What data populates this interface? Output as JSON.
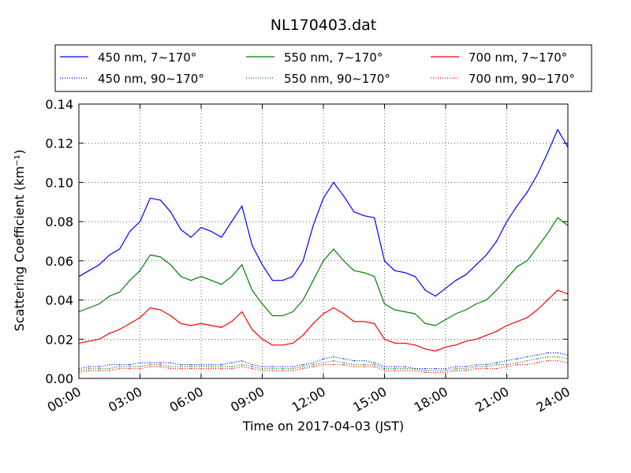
{
  "chart_data": {
    "type": "line",
    "title": "NL170403.dat",
    "xlabel": "Time on 2017-04-03 (JST)",
    "ylabel": "Scattering Coefficient (km⁻¹)",
    "x_unit": "hours",
    "xlim": [
      0,
      24
    ],
    "ylim": [
      0,
      0.14
    ],
    "x_ticks": [
      0,
      3,
      6,
      9,
      12,
      15,
      18,
      21,
      24
    ],
    "x_tick_labels": [
      "00:00",
      "03:00",
      "06:00",
      "09:00",
      "12:00",
      "15:00",
      "18:00",
      "21:00",
      "24:00"
    ],
    "y_ticks": [
      0,
      0.02,
      0.04,
      0.06,
      0.08,
      0.1,
      0.12,
      0.14
    ],
    "y_tick_labels": [
      "0.00",
      "0.02",
      "0.04",
      "0.06",
      "0.08",
      "0.10",
      "0.12",
      "0.14"
    ],
    "grid": true,
    "legend_position": "top",
    "x": [
      0,
      0.5,
      1,
      1.5,
      2,
      2.5,
      3,
      3.5,
      4,
      4.5,
      5,
      5.5,
      6,
      6.5,
      7,
      7.5,
      8,
      8.5,
      9,
      9.5,
      10,
      10.5,
      11,
      11.5,
      12,
      12.5,
      13,
      13.5,
      14,
      14.5,
      15,
      15.5,
      16,
      16.5,
      17,
      17.5,
      18,
      18.5,
      19,
      19.5,
      20,
      20.5,
      21,
      21.5,
      22,
      22.5,
      23,
      23.5,
      24
    ],
    "series": [
      {
        "name": "450 nm, 7∼170°",
        "color": "#0000ff",
        "style": "solid",
        "values": [
          0.052,
          0.055,
          0.058,
          0.063,
          0.066,
          0.075,
          0.08,
          0.092,
          0.091,
          0.085,
          0.076,
          0.072,
          0.077,
          0.075,
          0.072,
          0.08,
          0.088,
          0.068,
          0.058,
          0.05,
          0.05,
          0.052,
          0.06,
          0.078,
          0.092,
          0.1,
          0.093,
          0.085,
          0.083,
          0.082,
          0.06,
          0.055,
          0.054,
          0.052,
          0.045,
          0.042,
          0.046,
          0.05,
          0.053,
          0.058,
          0.063,
          0.07,
          0.08,
          0.088,
          0.095,
          0.104,
          0.115,
          0.127,
          0.118
        ]
      },
      {
        "name": "550 nm, 7∼170°",
        "color": "#008000",
        "style": "solid",
        "values": [
          0.034,
          0.036,
          0.038,
          0.042,
          0.044,
          0.05,
          0.055,
          0.063,
          0.062,
          0.058,
          0.052,
          0.05,
          0.052,
          0.05,
          0.048,
          0.052,
          0.058,
          0.045,
          0.038,
          0.032,
          0.032,
          0.034,
          0.04,
          0.05,
          0.06,
          0.066,
          0.06,
          0.055,
          0.054,
          0.052,
          0.038,
          0.035,
          0.034,
          0.033,
          0.028,
          0.027,
          0.03,
          0.033,
          0.035,
          0.038,
          0.04,
          0.045,
          0.051,
          0.057,
          0.06,
          0.067,
          0.074,
          0.082,
          0.078
        ]
      },
      {
        "name": "700 nm, 7∼170°",
        "color": "#ff0000",
        "style": "solid",
        "values": [
          0.018,
          0.019,
          0.02,
          0.023,
          0.025,
          0.028,
          0.031,
          0.036,
          0.035,
          0.032,
          0.028,
          0.027,
          0.028,
          0.027,
          0.026,
          0.029,
          0.034,
          0.025,
          0.02,
          0.017,
          0.017,
          0.018,
          0.022,
          0.028,
          0.033,
          0.036,
          0.033,
          0.029,
          0.029,
          0.028,
          0.02,
          0.018,
          0.018,
          0.017,
          0.015,
          0.014,
          0.016,
          0.017,
          0.019,
          0.02,
          0.022,
          0.024,
          0.027,
          0.029,
          0.031,
          0.035,
          0.04,
          0.045,
          0.043
        ]
      },
      {
        "name": "450 nm, 90∼170°",
        "color": "#0000ff",
        "style": "dotted",
        "values": [
          0.005,
          0.006,
          0.006,
          0.007,
          0.007,
          0.007,
          0.008,
          0.008,
          0.008,
          0.008,
          0.007,
          0.007,
          0.007,
          0.007,
          0.007,
          0.008,
          0.009,
          0.007,
          0.006,
          0.006,
          0.006,
          0.006,
          0.007,
          0.008,
          0.01,
          0.011,
          0.01,
          0.009,
          0.009,
          0.008,
          0.006,
          0.006,
          0.006,
          0.005,
          0.005,
          0.005,
          0.005,
          0.006,
          0.006,
          0.007,
          0.007,
          0.008,
          0.009,
          0.01,
          0.011,
          0.012,
          0.013,
          0.013,
          0.012
        ]
      },
      {
        "name": "550 nm, 90∼170°",
        "color": "#008000",
        "style": "dotted",
        "values": [
          0.004,
          0.005,
          0.005,
          0.005,
          0.006,
          0.006,
          0.006,
          0.007,
          0.007,
          0.006,
          0.006,
          0.006,
          0.006,
          0.006,
          0.006,
          0.006,
          0.007,
          0.006,
          0.005,
          0.005,
          0.005,
          0.005,
          0.006,
          0.007,
          0.008,
          0.009,
          0.008,
          0.007,
          0.007,
          0.007,
          0.005,
          0.005,
          0.005,
          0.005,
          0.004,
          0.004,
          0.004,
          0.005,
          0.005,
          0.006,
          0.006,
          0.007,
          0.007,
          0.008,
          0.009,
          0.01,
          0.011,
          0.011,
          0.01
        ]
      },
      {
        "name": "700 nm, 90∼170°",
        "color": "#ff0000",
        "style": "dotted",
        "values": [
          0.003,
          0.004,
          0.004,
          0.004,
          0.005,
          0.005,
          0.005,
          0.006,
          0.006,
          0.005,
          0.005,
          0.005,
          0.005,
          0.005,
          0.005,
          0.005,
          0.006,
          0.005,
          0.004,
          0.004,
          0.004,
          0.004,
          0.005,
          0.006,
          0.007,
          0.007,
          0.007,
          0.006,
          0.006,
          0.006,
          0.004,
          0.004,
          0.004,
          0.004,
          0.003,
          0.003,
          0.003,
          0.004,
          0.004,
          0.005,
          0.005,
          0.005,
          0.006,
          0.007,
          0.007,
          0.008,
          0.009,
          0.009,
          0.008
        ]
      }
    ]
  }
}
